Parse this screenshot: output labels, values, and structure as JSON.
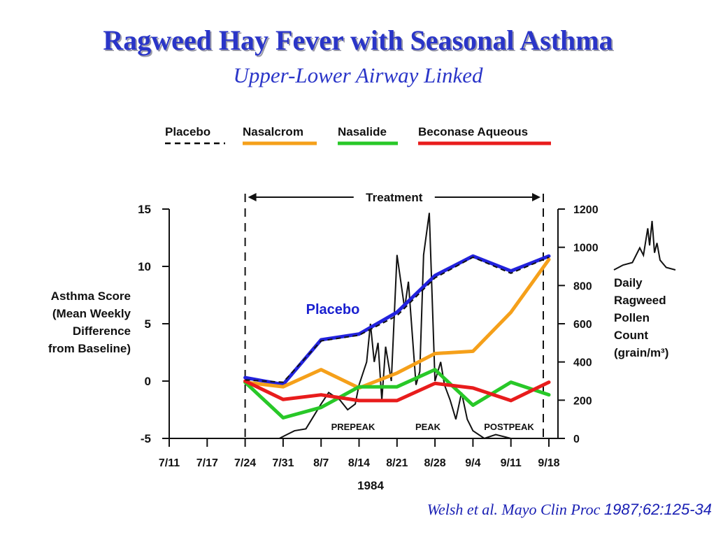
{
  "header": {
    "title": "Ragweed Hay Fever with Seasonal Asthma",
    "subtitle": "Upper-Lower Airway Linked"
  },
  "citation": {
    "text": "Welsh et al. Mayo Clin Proc",
    "ref": "1987;62:125-34"
  },
  "chart_data": {
    "type": "line",
    "x": [
      "7/11",
      "7/17",
      "7/24",
      "7/31",
      "8/7",
      "8/14",
      "8/21",
      "8/28",
      "9/4",
      "9/11",
      "9/18"
    ],
    "xlabel": "1984",
    "ylabel": [
      "Asthma Score",
      "(Mean Weekly",
      "Difference",
      "from Baseline)"
    ],
    "ylim": [
      -5,
      15
    ],
    "yticks": [
      15,
      10,
      5,
      0,
      -5
    ],
    "y2label": [
      "Daily",
      "Ragweed",
      "Pollen",
      "Count",
      "(grain/m³)"
    ],
    "y2lim": [
      0,
      1200
    ],
    "y2ticks": [
      1200,
      1000,
      800,
      600,
      400,
      200,
      0
    ],
    "treatment_label": "Treatment",
    "treatment_range": [
      "7/24",
      "9/18"
    ],
    "phases": [
      "PREPEAK",
      "PEAK",
      "POSTPEAK"
    ],
    "series_label": "Placebo",
    "legend": [
      {
        "name": "Placebo",
        "color": "#000000",
        "style": "dashed"
      },
      {
        "name": "Nasalcrom",
        "color": "#f5a01a",
        "style": "solid"
      },
      {
        "name": "Nasalide",
        "color": "#28c828",
        "style": "solid"
      },
      {
        "name": "Beconase Aqueous",
        "color": "#e81c1c",
        "style": "solid"
      }
    ],
    "series": [
      {
        "name": "Placebo",
        "color": "#2222dd",
        "points": [
          [
            0,
            0.3
          ],
          [
            1,
            -0.3
          ],
          [
            2,
            3.6
          ],
          [
            3,
            4.1
          ],
          [
            4,
            6.0
          ],
          [
            5,
            9.2
          ],
          [
            6,
            10.9
          ],
          [
            7,
            9.6
          ],
          [
            8,
            10.9
          ]
        ]
      },
      {
        "name": "Nasalcrom",
        "color": "#f5a01a",
        "points": [
          [
            0,
            -0.1
          ],
          [
            1,
            -0.5
          ],
          [
            2,
            1.0
          ],
          [
            3,
            -0.6
          ],
          [
            4,
            0.7
          ],
          [
            5,
            2.4
          ],
          [
            6,
            2.6
          ],
          [
            7,
            6.0
          ],
          [
            8,
            10.6
          ]
        ]
      },
      {
        "name": "Nasalide",
        "color": "#28c828",
        "points": [
          [
            0,
            -0.1
          ],
          [
            1,
            -3.2
          ],
          [
            2,
            -2.3
          ],
          [
            3,
            -0.5
          ],
          [
            4,
            -0.5
          ],
          [
            5,
            1.0
          ],
          [
            6,
            -2.1
          ],
          [
            7,
            -0.1
          ],
          [
            8,
            -1.2
          ]
        ]
      },
      {
        "name": "Beconase Aqueous",
        "color": "#e81c1c",
        "points": [
          [
            0,
            0.0
          ],
          [
            1,
            -1.6
          ],
          [
            2,
            -1.2
          ],
          [
            3,
            -1.7
          ],
          [
            4,
            -1.7
          ],
          [
            5,
            -0.2
          ],
          [
            6,
            -0.6
          ],
          [
            7,
            -1.7
          ],
          [
            8,
            -0.1
          ]
        ]
      }
    ],
    "placebo_dashed": [
      [
        0,
        0.1
      ],
      [
        1,
        -0.1
      ],
      [
        2,
        3.5
      ],
      [
        3,
        4.0
      ],
      [
        4,
        5.7
      ],
      [
        5,
        9.0
      ],
      [
        6,
        10.8
      ],
      [
        7,
        9.4
      ],
      [
        8,
        10.8
      ]
    ],
    "pollen": [
      [
        -0.6,
        0
      ],
      [
        0,
        0
      ],
      [
        0.9,
        0
      ],
      [
        1.1,
        20
      ],
      [
        1.3,
        40
      ],
      [
        1.6,
        50
      ],
      [
        2.0,
        180
      ],
      [
        2.2,
        240
      ],
      [
        2.5,
        200
      ],
      [
        2.7,
        150
      ],
      [
        2.9,
        180
      ],
      [
        3.0,
        280
      ],
      [
        3.2,
        400
      ],
      [
        3.3,
        600
      ],
      [
        3.4,
        400
      ],
      [
        3.5,
        500
      ],
      [
        3.6,
        200
      ],
      [
        3.7,
        480
      ],
      [
        3.85,
        300
      ],
      [
        4.0,
        960
      ],
      [
        4.2,
        680
      ],
      [
        4.3,
        820
      ],
      [
        4.5,
        280
      ],
      [
        4.6,
        350
      ],
      [
        4.7,
        960
      ],
      [
        4.85,
        1180
      ],
      [
        5.0,
        300
      ],
      [
        5.15,
        400
      ],
      [
        5.25,
        280
      ],
      [
        5.4,
        200
      ],
      [
        5.55,
        100
      ],
      [
        5.7,
        240
      ],
      [
        5.85,
        100
      ],
      [
        6.0,
        40
      ],
      [
        6.3,
        0
      ],
      [
        6.6,
        20
      ],
      [
        7.0,
        0
      ],
      [
        7.4,
        0
      ]
    ],
    "mini_pollen": [
      [
        0,
        0
      ],
      [
        0.15,
        0.1
      ],
      [
        0.3,
        0.15
      ],
      [
        0.42,
        0.45
      ],
      [
        0.48,
        0.3
      ],
      [
        0.55,
        0.85
      ],
      [
        0.58,
        0.5
      ],
      [
        0.62,
        1.0
      ],
      [
        0.66,
        0.35
      ],
      [
        0.7,
        0.55
      ],
      [
        0.75,
        0.2
      ],
      [
        0.85,
        0.05
      ],
      [
        1.0,
        0
      ]
    ]
  }
}
